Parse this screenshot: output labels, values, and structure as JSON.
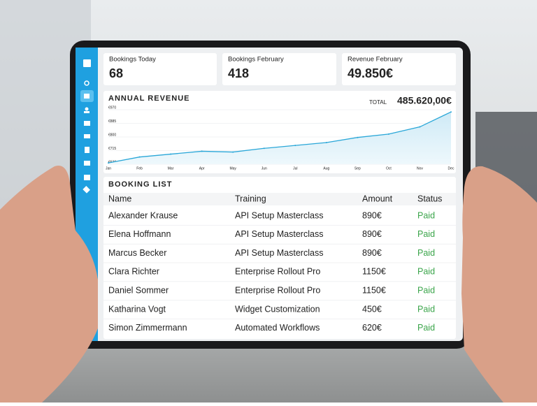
{
  "cards": [
    {
      "label": "Bookings Today",
      "value": "68"
    },
    {
      "label": "Bookings February",
      "value": "418"
    },
    {
      "label": "Revenue February",
      "value": "49.850€"
    }
  ],
  "revenue_panel": {
    "total_label": "TOTAL",
    "total": "485.620,00€"
  },
  "chart_data": {
    "type": "line",
    "title": "ANNUAL REVENUE",
    "categories": [
      "Jan",
      "Feb",
      "Mar",
      "Apr",
      "May",
      "Jun",
      "Jul",
      "Aug",
      "Sep",
      "Oct",
      "Nov",
      "Dec"
    ],
    "values": [
      638,
      675,
      693,
      711,
      706,
      729,
      747,
      765,
      797,
      818,
      863,
      956
    ],
    "color": "#2aa7d8",
    "ylim": [
      630,
      970
    ],
    "yticks": [
      {
        "value": 630,
        "label": "€630"
      },
      {
        "value": 715,
        "label": "€715"
      },
      {
        "value": 800,
        "label": "€800"
      },
      {
        "value": 885,
        "label": "€885"
      },
      {
        "value": 970,
        "label": "€970"
      }
    ],
    "grid": true
  },
  "booking_list": {
    "title": "BOOKING LIST",
    "columns": [
      "Name",
      "Training",
      "Amount",
      "Status"
    ],
    "rows": [
      [
        "Alexander Krause",
        "API Setup Masterclass",
        "890€",
        "Paid"
      ],
      [
        "Elena Hoffmann",
        "API Setup Masterclass",
        "890€",
        "Paid"
      ],
      [
        "Marcus Becker",
        "API Setup Masterclass",
        "890€",
        "Paid"
      ],
      [
        "Clara Richter",
        "Enterprise Rollout Pro",
        "1150€",
        "Paid"
      ],
      [
        "Daniel Sommer",
        "Enterprise Rollout Pro",
        "1150€",
        "Paid"
      ],
      [
        "Katharina Vogt",
        "Widget Customization",
        "450€",
        "Paid"
      ],
      [
        "Simon Zimmermann",
        "Automated Workflows",
        "620€",
        "Paid"
      ]
    ]
  }
}
